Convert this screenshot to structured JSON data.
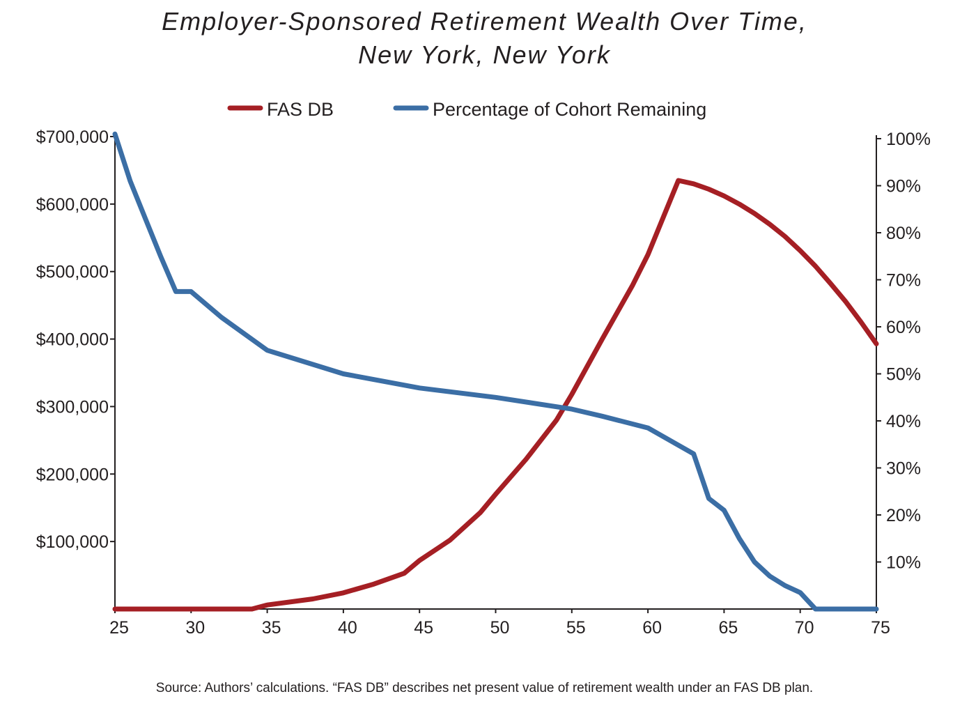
{
  "title_line1": "Employer-Sponsored Retirement Wealth Over Time,",
  "title_line2": "New York, New York",
  "source": "Source: Authors’ calculations. “FAS DB” describes net present value of retirement wealth under an FAS DB plan.",
  "chart_data": {
    "type": "line",
    "legend_position": "top",
    "grid": false,
    "x_ticks": [
      "25",
      "30",
      "35",
      "40",
      "45",
      "50",
      "55",
      "60",
      "65",
      "70",
      "75"
    ],
    "xlim": [
      25,
      75
    ],
    "y_left_ticks": [
      "$700,000",
      "$600,000",
      "$500,000",
      "$400,000",
      "$300,000",
      "$200,000",
      "$100,000"
    ],
    "y_left_lim": [
      0,
      700000
    ],
    "y_right_ticks": [
      "100%",
      "90%",
      "80%",
      "70%",
      "60%",
      "50%",
      "40%",
      "30%",
      "20%",
      "10%"
    ],
    "y_right_lim": [
      0,
      100
    ],
    "series": [
      {
        "name": "FAS DB",
        "axis": "left",
        "color": "#a51f24",
        "x": [
          25,
          34,
          35,
          38,
          40,
          42,
          44,
          45,
          47,
          49,
          50,
          52,
          54,
          55,
          57,
          59,
          60,
          62,
          63,
          64,
          65,
          66,
          67,
          68,
          69,
          70,
          71,
          72,
          73,
          74,
          75
        ],
        "y": [
          0,
          0,
          6000,
          15000,
          24000,
          37000,
          53000,
          72000,
          102000,
          143000,
          170000,
          222000,
          280000,
          318000,
          400000,
          480000,
          525000,
          635000,
          630000,
          622000,
          612000,
          600000,
          586000,
          570000,
          552000,
          531000,
          508000,
          482000,
          455000,
          425000,
          393000
        ]
      },
      {
        "name": "Percentage of Cohort Remaining",
        "axis": "right",
        "color": "#3b6ea5",
        "x": [
          25,
          26,
          27,
          28,
          29,
          30,
          32,
          35,
          40,
          45,
          50,
          55,
          57,
          60,
          63,
          64,
          65,
          66,
          67,
          68,
          69,
          70,
          71,
          72,
          75
        ],
        "y": [
          101,
          91,
          83,
          75,
          67.5,
          67.5,
          62,
          55,
          50,
          47,
          45,
          42.5,
          41,
          38.5,
          33,
          23.5,
          21,
          15,
          10,
          7,
          5,
          3.5,
          0,
          0,
          0
        ]
      }
    ]
  }
}
